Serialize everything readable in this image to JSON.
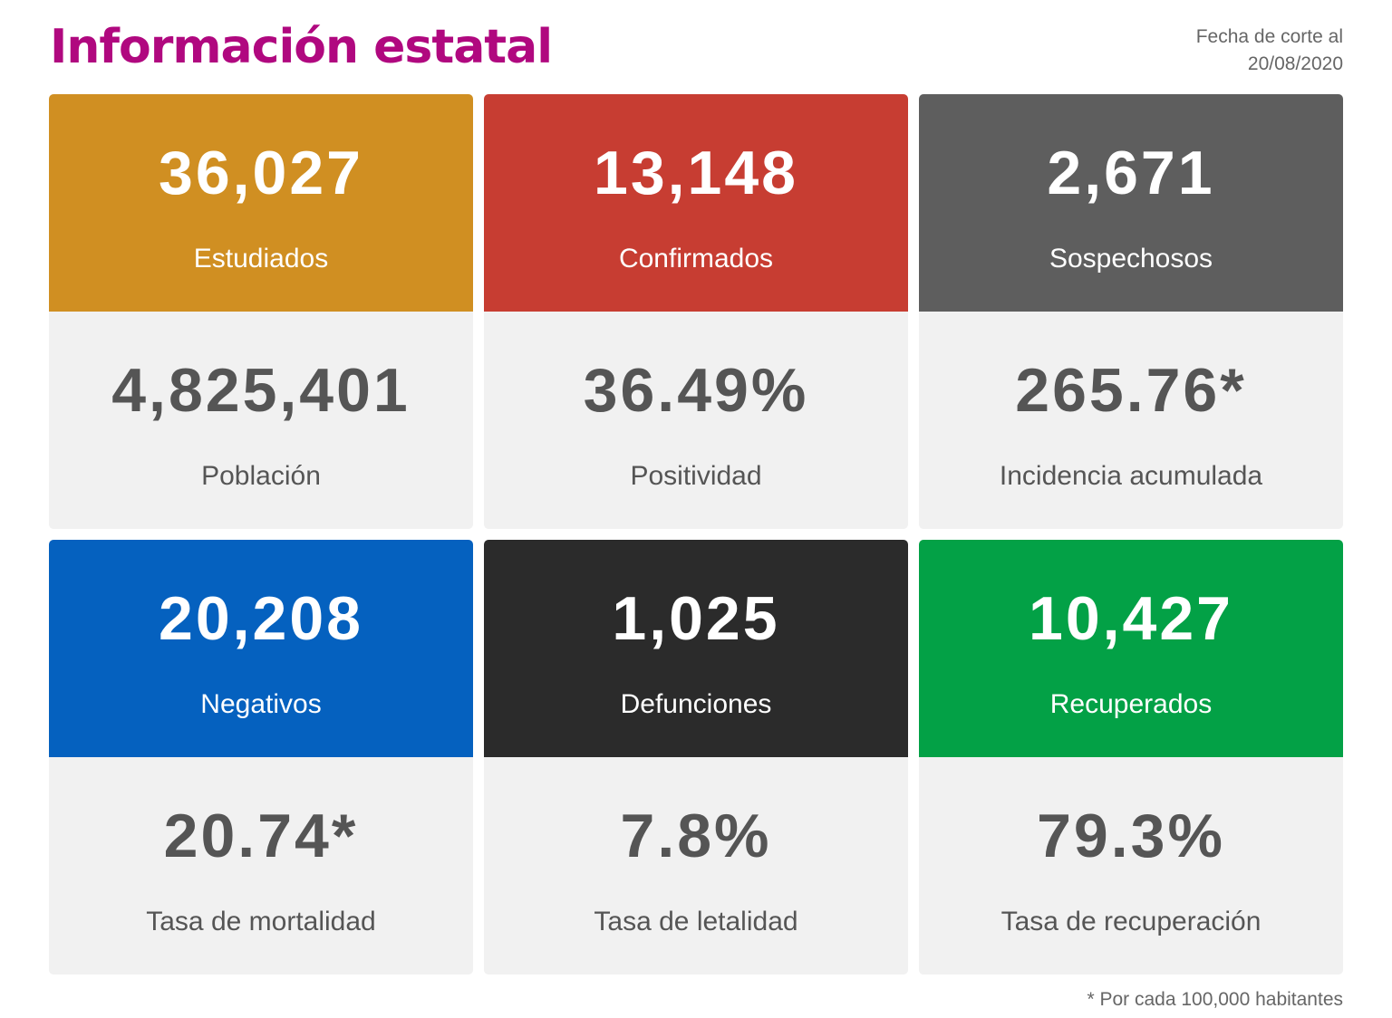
{
  "header": {
    "title": "Información estatal",
    "date_line1": "Fecha de corte al",
    "date_line2": "20/08/2020"
  },
  "cards": [
    {
      "top": {
        "value": "36,027",
        "label": "Estudiados",
        "color": "#d08f22"
      },
      "bottom": {
        "value": "4,825,401",
        "label": "Población"
      }
    },
    {
      "top": {
        "value": "13,148",
        "label": "Confirmados",
        "color": "#c73d32"
      },
      "bottom": {
        "value": "36.49%",
        "label": "Positividad"
      }
    },
    {
      "top": {
        "value": "2,671",
        "label": "Sospechosos",
        "color": "#5e5e5e"
      },
      "bottom": {
        "value": "265.76*",
        "label": "Incidencia acumulada"
      }
    },
    {
      "top": {
        "value": "20,208",
        "label": "Negativos",
        "color": "#0561bf"
      },
      "bottom": {
        "value": "20.74*",
        "label": "Tasa de mortalidad"
      }
    },
    {
      "top": {
        "value": "1,025",
        "label": "Defunciones",
        "color": "#2b2b2b"
      },
      "bottom": {
        "value": "7.8%",
        "label": "Tasa de letalidad"
      }
    },
    {
      "top": {
        "value": "10,427",
        "label": "Recuperados",
        "color": "#03a146"
      },
      "bottom": {
        "value": "79.3%",
        "label": "Tasa de recuperación"
      }
    }
  ],
  "footnote": "* Por cada 100,000 habitantes"
}
